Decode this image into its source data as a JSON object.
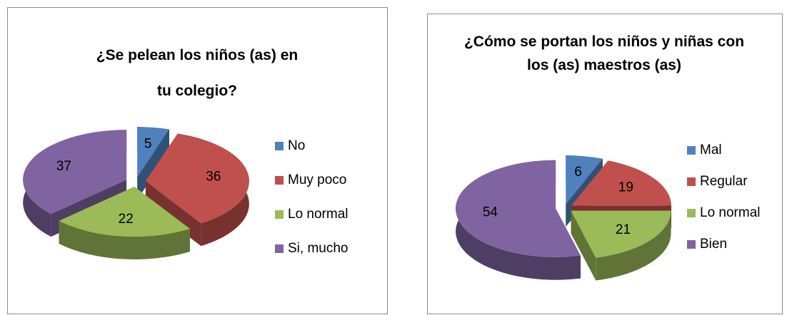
{
  "chart_data": [
    {
      "type": "pie",
      "title": "¿Se pelean los niños (as) en tu colegio?",
      "categories": [
        "No",
        "Muy poco",
        "Lo normal",
        "Si, mucho"
      ],
      "values": [
        5,
        36,
        22,
        37
      ],
      "colors": [
        "#4f81bd",
        "#c0504d",
        "#9bbb59",
        "#8064a2"
      ],
      "legend": "right"
    },
    {
      "type": "pie",
      "title": "¿Cómo se portan los niños y niñas con los (as) maestros (as)",
      "categories": [
        "Mal",
        "Regular",
        "Lo normal",
        "Bien"
      ],
      "values": [
        6,
        19,
        21,
        54
      ],
      "colors": [
        "#4f81bd",
        "#c0504d",
        "#9bbb59",
        "#8064a2"
      ],
      "legend": "right"
    }
  ]
}
